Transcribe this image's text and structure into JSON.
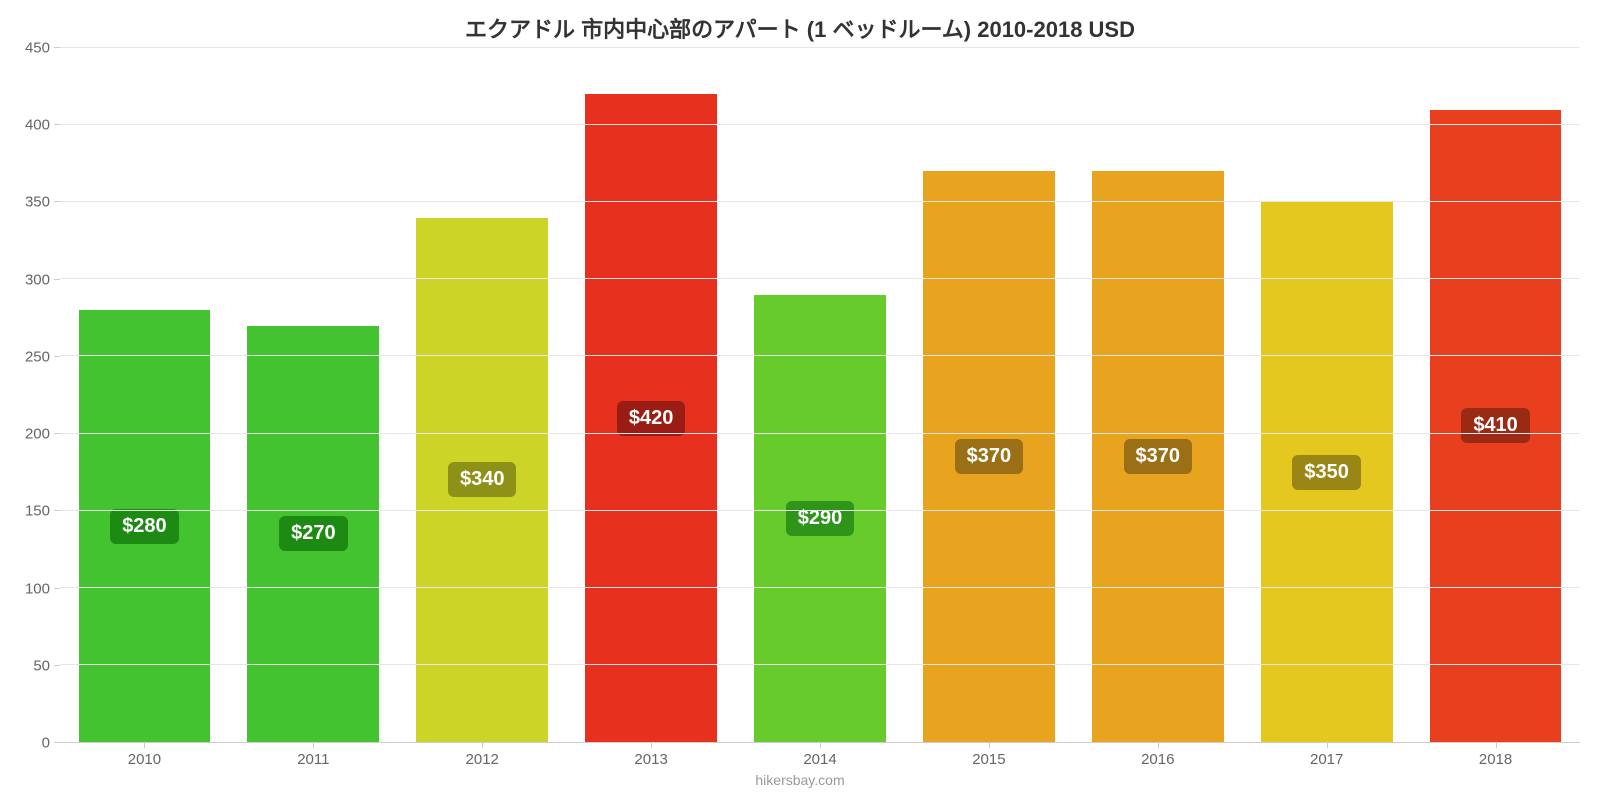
{
  "chart": {
    "type": "bar",
    "title": "エクアドル 市内中心部のアパート (1 ベッドルーム) 2010-2018 USD",
    "title_fontsize": 22,
    "title_color": "#333333",
    "footer_text": "hikersbay.com",
    "background_color": "#ffffff",
    "grid_color": "#e6e6e6",
    "axis_color": "#cccccc",
    "tick_font_color": "#666666",
    "tick_fontsize": 15,
    "ylim": [
      0,
      450
    ],
    "yticks": [
      0,
      50,
      100,
      150,
      200,
      250,
      300,
      350,
      400,
      450
    ],
    "categories": [
      "2010",
      "2011",
      "2012",
      "2013",
      "2014",
      "2015",
      "2016",
      "2017",
      "2018"
    ],
    "values": [
      280,
      270,
      340,
      420,
      290,
      370,
      370,
      350,
      410
    ],
    "value_labels": [
      "$280",
      "$270",
      "$340",
      "$420",
      "$290",
      "$370",
      "$370",
      "$350",
      "$410"
    ],
    "bar_colors": [
      "#43c330",
      "#43c330",
      "#cbd427",
      "#e8301f",
      "#68cb2c",
      "#e8a41e",
      "#e8a41e",
      "#e4c71f",
      "#e8401f"
    ],
    "label_bg_colors": [
      "#1d8a13",
      "#1d8a13",
      "#8e9118",
      "#9a1c14",
      "#2f951a",
      "#9b6f15",
      "#9b6f15",
      "#9a8615",
      "#9a2a14"
    ],
    "label_fontsize": 20,
    "bar_width_pct": 78
  }
}
